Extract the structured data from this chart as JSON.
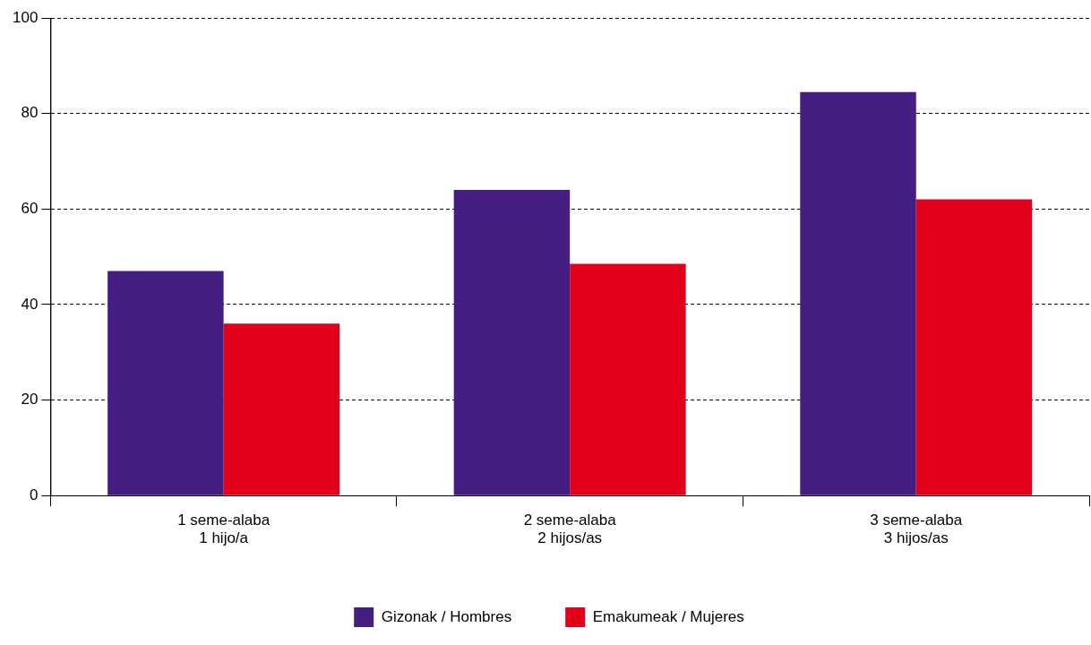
{
  "chart_data": {
    "type": "bar",
    "categories": [
      "1 seme-alaba\n1 hijo/a",
      "2 seme-alaba\n2 hijos/as",
      "3 seme-alaba\n3 hijos/as"
    ],
    "series": [
      {
        "name": "Gizonak / Hombres",
        "color": "#451e81",
        "values": [
          47,
          64,
          84.5
        ]
      },
      {
        "name": "Emakumeak / Mujeres",
        "color": "#e3001b",
        "values": [
          36,
          48.5,
          62
        ]
      }
    ],
    "ylim": [
      0,
      100
    ],
    "yticks": [
      0,
      20,
      40,
      60,
      80,
      100
    ],
    "grid": "y",
    "legend": "bottom"
  }
}
